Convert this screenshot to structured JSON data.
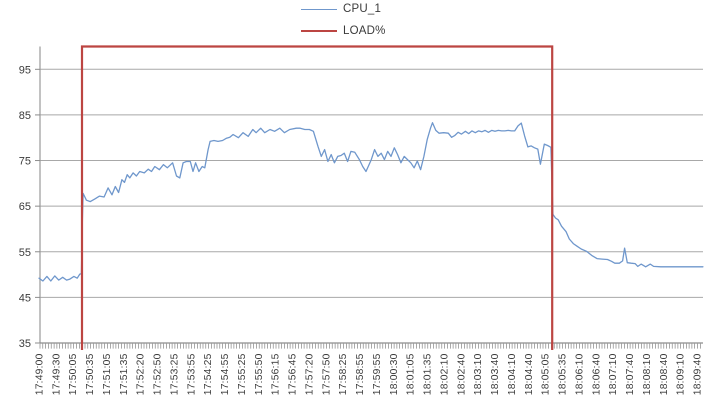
{
  "chart_data": {
    "type": "line",
    "title": "",
    "xlabel": "",
    "ylabel": "",
    "ylim": [
      35,
      100
    ],
    "grid": true,
    "legend_position": "top-center",
    "y_tick_labels": [
      "95",
      "85",
      "75",
      "65",
      "55",
      "45",
      "35"
    ],
    "y_tick_values": [
      95,
      85,
      75,
      65,
      55,
      45,
      35
    ],
    "x_tick_labels": [
      "17:49:00",
      "17:49:30",
      "17:50:05",
      "17:50:35",
      "17:51:05",
      "17:51:35",
      "17:52:20",
      "17:52:50",
      "17:53:25",
      "17:53:55",
      "17:54:25",
      "17:54:55",
      "17:55:25",
      "17:55:50",
      "17:56:15",
      "17:56:45",
      "17:57:20",
      "17:57:50",
      "17:58:25",
      "17:58:55",
      "17:59:55",
      "18:00:30",
      "18:01:05",
      "18:01:35",
      "18:02:10",
      "18:02:40",
      "18:03:10",
      "18:03:40",
      "18:04:10",
      "18:04:40",
      "18:05:05",
      "18:05:35",
      "18:06:10",
      "18:06:40",
      "18:07:10",
      "18:07:40",
      "18:08:10",
      "18:08:40",
      "18:09:10",
      "18:09:40"
    ],
    "series": [
      {
        "name": "CPU_1",
        "color": "#6f97cc",
        "thickness": 1.3,
        "points": [
          [
            0.0,
            49.2
          ],
          [
            0.006,
            48.6
          ],
          [
            0.012,
            49.6
          ],
          [
            0.018,
            48.6
          ],
          [
            0.024,
            49.7
          ],
          [
            0.03,
            48.8
          ],
          [
            0.036,
            49.4
          ],
          [
            0.042,
            48.8
          ],
          [
            0.047,
            49.0
          ],
          [
            0.053,
            49.6
          ],
          [
            0.058,
            49.2
          ],
          [
            0.062,
            50.1
          ],
          [
            0.0645,
            50.2
          ],
          [
            0.066,
            62.0
          ],
          [
            0.067,
            67.8
          ],
          [
            0.072,
            66.3
          ],
          [
            0.078,
            66.0
          ],
          [
            0.085,
            66.6
          ],
          [
            0.092,
            67.2
          ],
          [
            0.099,
            67.0
          ],
          [
            0.105,
            69.0
          ],
          [
            0.111,
            67.5
          ],
          [
            0.116,
            69.3
          ],
          [
            0.121,
            68.0
          ],
          [
            0.126,
            70.8
          ],
          [
            0.13,
            70.2
          ],
          [
            0.134,
            71.9
          ],
          [
            0.138,
            71.2
          ],
          [
            0.143,
            72.3
          ],
          [
            0.148,
            71.6
          ],
          [
            0.153,
            72.6
          ],
          [
            0.16,
            72.3
          ],
          [
            0.166,
            73.1
          ],
          [
            0.171,
            72.6
          ],
          [
            0.176,
            73.7
          ],
          [
            0.183,
            73.0
          ],
          [
            0.189,
            74.1
          ],
          [
            0.195,
            73.4
          ],
          [
            0.203,
            74.5
          ],
          [
            0.209,
            71.6
          ],
          [
            0.214,
            71.2
          ],
          [
            0.219,
            74.5
          ],
          [
            0.224,
            74.8
          ],
          [
            0.23,
            74.8
          ],
          [
            0.234,
            72.6
          ],
          [
            0.238,
            74.5
          ],
          [
            0.243,
            72.6
          ],
          [
            0.248,
            73.7
          ],
          [
            0.252,
            73.4
          ],
          [
            0.257,
            77.4
          ],
          [
            0.26,
            79.2
          ],
          [
            0.266,
            79.4
          ],
          [
            0.272,
            79.2
          ],
          [
            0.279,
            79.4
          ],
          [
            0.285,
            79.9
          ],
          [
            0.29,
            80.1
          ],
          [
            0.295,
            80.7
          ],
          [
            0.303,
            80.0
          ],
          [
            0.31,
            81.1
          ],
          [
            0.318,
            80.3
          ],
          [
            0.325,
            81.8
          ],
          [
            0.33,
            81.1
          ],
          [
            0.337,
            82.1
          ],
          [
            0.343,
            81.1
          ],
          [
            0.351,
            81.8
          ],
          [
            0.358,
            81.4
          ],
          [
            0.366,
            82.1
          ],
          [
            0.373,
            81.1
          ],
          [
            0.381,
            81.8
          ],
          [
            0.391,
            82.1
          ],
          [
            0.397,
            82.1
          ],
          [
            0.404,
            81.8
          ],
          [
            0.411,
            81.8
          ],
          [
            0.417,
            81.4
          ],
          [
            0.424,
            78.1
          ],
          [
            0.429,
            75.9
          ],
          [
            0.434,
            77.4
          ],
          [
            0.439,
            74.8
          ],
          [
            0.444,
            76.3
          ],
          [
            0.449,
            74.5
          ],
          [
            0.454,
            75.9
          ],
          [
            0.459,
            76.1
          ],
          [
            0.464,
            76.6
          ],
          [
            0.469,
            74.8
          ],
          [
            0.474,
            77.0
          ],
          [
            0.48,
            76.8
          ],
          [
            0.487,
            75.2
          ],
          [
            0.492,
            73.7
          ],
          [
            0.497,
            72.6
          ],
          [
            0.505,
            75.2
          ],
          [
            0.51,
            77.4
          ],
          [
            0.515,
            75.9
          ],
          [
            0.52,
            76.6
          ],
          [
            0.525,
            75.2
          ],
          [
            0.53,
            77.0
          ],
          [
            0.535,
            75.9
          ],
          [
            0.54,
            77.8
          ],
          [
            0.545,
            76.3
          ],
          [
            0.55,
            74.5
          ],
          [
            0.555,
            75.9
          ],
          [
            0.56,
            75.2
          ],
          [
            0.565,
            74.5
          ],
          [
            0.57,
            73.4
          ],
          [
            0.575,
            74.9
          ],
          [
            0.58,
            73.0
          ],
          [
            0.585,
            75.9
          ],
          [
            0.59,
            79.6
          ],
          [
            0.595,
            82.1
          ],
          [
            0.598,
            83.3
          ],
          [
            0.603,
            81.6
          ],
          [
            0.608,
            81.0
          ],
          [
            0.615,
            81.1
          ],
          [
            0.622,
            81.0
          ],
          [
            0.627,
            80.1
          ],
          [
            0.632,
            80.5
          ],
          [
            0.637,
            81.2
          ],
          [
            0.642,
            80.8
          ],
          [
            0.648,
            81.4
          ],
          [
            0.653,
            80.9
          ],
          [
            0.658,
            81.5
          ],
          [
            0.663,
            81.1
          ],
          [
            0.668,
            81.5
          ],
          [
            0.673,
            81.3
          ],
          [
            0.678,
            81.6
          ],
          [
            0.683,
            81.2
          ],
          [
            0.688,
            81.6
          ],
          [
            0.693,
            81.4
          ],
          [
            0.698,
            81.6
          ],
          [
            0.703,
            81.5
          ],
          [
            0.708,
            81.5
          ],
          [
            0.713,
            81.6
          ],
          [
            0.718,
            81.5
          ],
          [
            0.723,
            81.5
          ],
          [
            0.728,
            82.6
          ],
          [
            0.733,
            83.2
          ],
          [
            0.738,
            80.4
          ],
          [
            0.743,
            78.0
          ],
          [
            0.748,
            78.2
          ],
          [
            0.753,
            77.8
          ],
          [
            0.758,
            77.5
          ],
          [
            0.762,
            74.2
          ],
          [
            0.768,
            78.6
          ],
          [
            0.773,
            78.3
          ],
          [
            0.778,
            77.9
          ],
          [
            0.781,
            63.2
          ],
          [
            0.785,
            62.4
          ],
          [
            0.789,
            62.0
          ],
          [
            0.794,
            60.6
          ],
          [
            0.801,
            59.4
          ],
          [
            0.806,
            57.8
          ],
          [
            0.812,
            56.8
          ],
          [
            0.818,
            56.2
          ],
          [
            0.824,
            55.6
          ],
          [
            0.832,
            55.1
          ],
          [
            0.84,
            54.2
          ],
          [
            0.848,
            53.5
          ],
          [
            0.856,
            53.4
          ],
          [
            0.864,
            53.3
          ],
          [
            0.87,
            52.9
          ],
          [
            0.875,
            52.5
          ],
          [
            0.882,
            52.5
          ],
          [
            0.887,
            53.0
          ],
          [
            0.89,
            55.8
          ],
          [
            0.894,
            52.6
          ],
          [
            0.9,
            52.5
          ],
          [
            0.906,
            52.4
          ],
          [
            0.91,
            51.8
          ],
          [
            0.915,
            52.3
          ],
          [
            0.922,
            51.7
          ],
          [
            0.929,
            52.3
          ],
          [
            0.934,
            51.8
          ],
          [
            0.945,
            51.7
          ],
          [
            0.96,
            51.7
          ],
          [
            0.98,
            51.7
          ],
          [
            1.0,
            51.7
          ],
          [
            1.009,
            51.7
          ]
        ]
      },
      {
        "name": "LOAD%",
        "color": "#bc4542",
        "thickness": 2.2,
        "step": true,
        "rise_time": "17:50:25",
        "drop_time": "18:05:20",
        "points": [
          [
            0.0653,
            0
          ],
          [
            0.0653,
            100
          ],
          [
            0.78,
            100
          ],
          [
            0.78,
            0
          ]
        ]
      }
    ]
  }
}
